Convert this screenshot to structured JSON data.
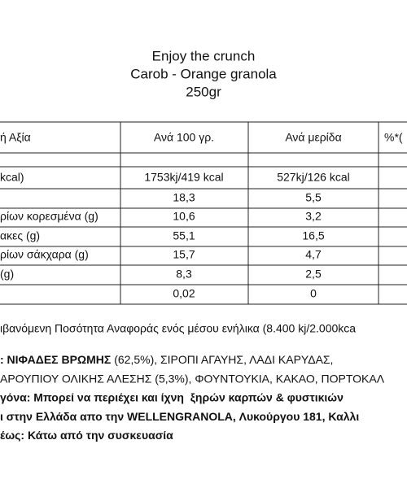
{
  "title_lines": [
    "Enjoy the crunch",
    "Carob - Orange granola",
    "250gr"
  ],
  "table": {
    "header": [
      "ή Αξία",
      "Ανά 100 γρ.",
      "Ανά μερίδα",
      "%*("
    ],
    "rows": [
      [
        "kcal)",
        "1753kj/419 kcal",
        "527kj/126 kcal"
      ],
      [
        null,
        "18,3",
        "5,5"
      ],
      [
        "ρίων κορεσμένα (g)",
        "10,6",
        "3,2"
      ],
      [
        "ακες (g)",
        "55,1",
        "16,5"
      ],
      [
        "ρίων σάκχαρα (g)",
        "15,7",
        "4,7"
      ],
      [
        "(g)",
        "8,3",
        "2,5"
      ],
      [
        null,
        "0,02",
        "0"
      ]
    ]
  },
  "footnote": "ιβανόμενη Ποσότητα Αναφοράς ενός μέσου ενήλικα (8.400 kj/2.000kca",
  "lines": [
    [
      {
        "text": ": ΝΙΦΑΔΕΣ ΒΡΩΜΗΣ",
        "bold": true
      },
      {
        "text": " (62,5%), ΣΙΡΟΠΙ ΑΓΑΥΗΣ, ΛΑΔΙ ΚΑΡΥΔΑΣ,",
        "bold": false
      }
    ],
    [
      {
        "text": "ΑΡΟΥΠΙΟΥ ΟΛΙΚΗΣ ΑΛΕΣΗΣ (5,3%), ΦΟΥΝΤΟΥΚΙΑ, ΚΑΚΑΟ, ΠΟΡΤΟΚΑΛ",
        "bold": false
      }
    ],
    [
      {
        "text": "γόνα: Μπορεί να περιέχει και ίχνη  ξηρών καρπών & φυστικιών",
        "bold": true
      }
    ],
    [
      {
        "text": "ι στην Ελλάδα απο την WELLENGRANOLA, Λυκούργου 181, Καλλι",
        "bold": true
      }
    ],
    [
      {
        "text": "έως: Κάτω από την συσκευασία",
        "bold": true
      }
    ]
  ]
}
